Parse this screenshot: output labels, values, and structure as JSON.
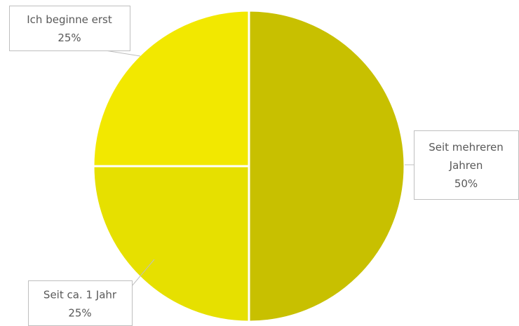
{
  "chart_data": {
    "type": "pie",
    "slices": [
      {
        "label": "Seit mehreren Jahren",
        "value": 50,
        "value_label": "50%",
        "label_lines": [
          "Seit mehreren",
          "Jahren",
          "50%"
        ],
        "color": "#c8c000"
      },
      {
        "label": "Seit ca. 1 Jahr",
        "value": 25,
        "value_label": "25%",
        "label_lines": [
          "Seit ca. 1 Jahr",
          "25%"
        ],
        "color": "#e6e000"
      },
      {
        "label": "Ich beginne erst",
        "value": 25,
        "value_label": "25%",
        "label_lines": [
          "Ich beginne erst",
          "25%"
        ],
        "color": "#f2e800"
      }
    ],
    "start_angle": "12 o'clock",
    "direction": "clockwise",
    "legend": "none",
    "data_labels": "callouts"
  }
}
